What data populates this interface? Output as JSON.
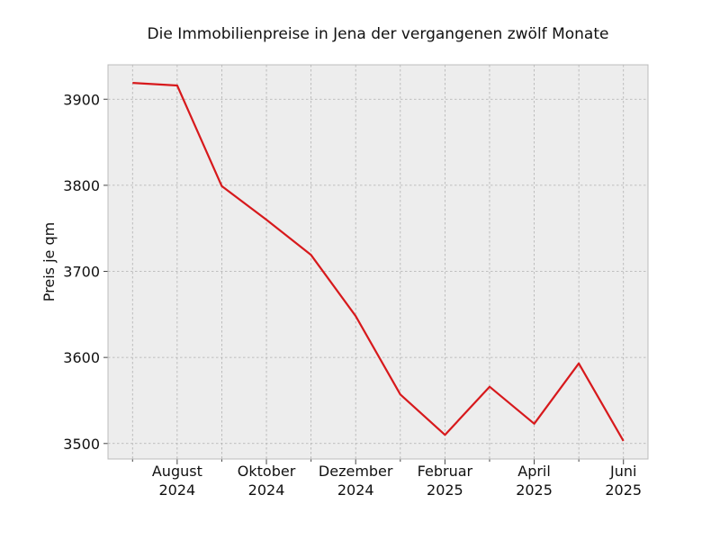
{
  "chart_data": {
    "type": "line",
    "title": "Die Immobilienpreise in Jena der vergangenen zwölf Monate",
    "xlabel": "",
    "ylabel": "Preis je qm",
    "x": [
      "2024-07",
      "2024-08",
      "2024-09",
      "2024-10",
      "2024-11",
      "2024-12",
      "2025-01",
      "2025-02",
      "2025-03",
      "2025-04",
      "2025-05",
      "2025-06"
    ],
    "series": [
      {
        "values": [
          3919,
          3916,
          3799,
          3760,
          3719,
          3648,
          3557,
          3510,
          3566,
          3523,
          3593,
          3503
        ]
      }
    ],
    "xticks": [
      {
        "x": "2024-08",
        "label": "August\n2024"
      },
      {
        "x": "2024-10",
        "label": "Oktober\n2024"
      },
      {
        "x": "2024-12",
        "label": "Dezember\n2024"
      },
      {
        "x": "2025-02",
        "label": "Februar\n2025"
      },
      {
        "x": "2025-04",
        "label": "April\n2025"
      },
      {
        "x": "2025-06",
        "label": "Juni\n2025"
      }
    ],
    "yticks": [
      3500,
      3600,
      3700,
      3800,
      3900
    ],
    "ylim": [
      3482,
      3940
    ],
    "grid": true,
    "colors": {
      "line": "#d7191c",
      "plot_bg": "#ededed",
      "frame": "#bcbcbc"
    }
  }
}
